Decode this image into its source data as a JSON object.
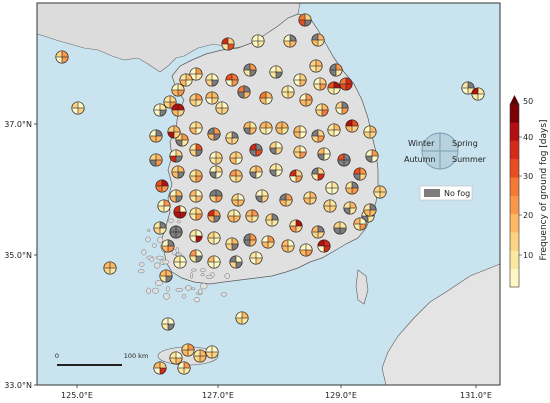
{
  "map": {
    "lat_labels": [
      "37.0°N",
      "35.0°N",
      "33.0°N"
    ],
    "lon_labels": [
      "125.0°E",
      "127.0°E",
      "129.0°E",
      "131.0°E"
    ],
    "colors": {
      "sea": "#c9e3ef",
      "land": "#e2e2e2",
      "frame": "#333333"
    }
  },
  "legend": {
    "winter": "Winter",
    "spring": "Spring",
    "autumn": "Autumn",
    "summer": "Summer",
    "no_fog": "No fog"
  },
  "colorbar": {
    "label": "Frequency of ground fog [days]",
    "ticks": [
      "10",
      "20",
      "30",
      "40",
      "50"
    ],
    "colors": [
      "#fff7c4",
      "#fde8a0",
      "#fdd383",
      "#fdb863",
      "#f9984a",
      "#f47935",
      "#e74f22",
      "#d42b18",
      "#b31111",
      "#7a0006"
    ],
    "extend_color": "#5c0004"
  },
  "scale_bar": {
    "start": "0",
    "end": "100 km"
  }
}
